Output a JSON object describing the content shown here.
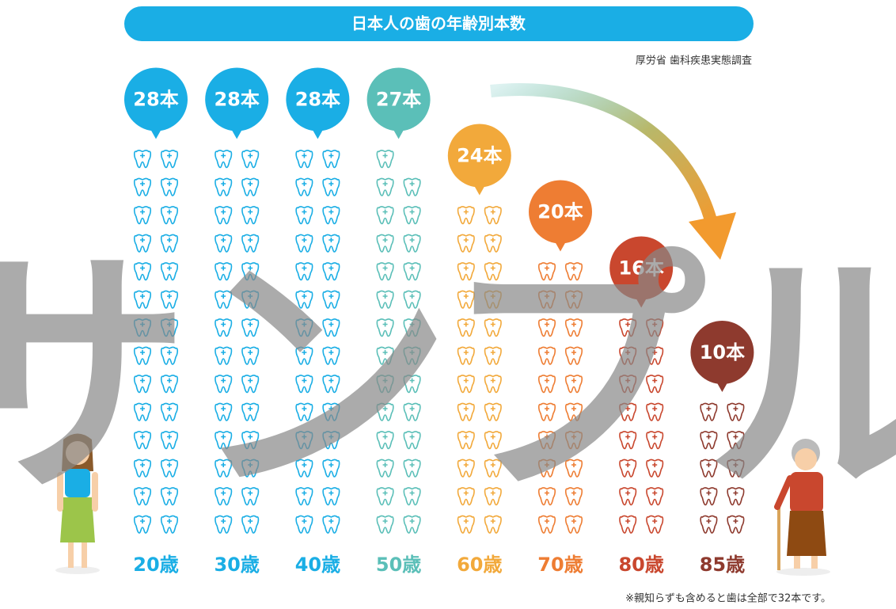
{
  "chart_data": {
    "type": "pictogram",
    "title": "日本人の歯の年齢別本数",
    "source": "厚労省 歯科疾患実態調査",
    "note": "※親知らずも含めると歯は全部で32本です。",
    "watermark": "サンプル",
    "categories": [
      "20歳",
      "30歳",
      "40歳",
      "50歳",
      "60歳",
      "70歳",
      "80歳",
      "85歳"
    ],
    "values": [
      28,
      28,
      28,
      27,
      24,
      20,
      16,
      10
    ],
    "value_labels": [
      "28本",
      "28本",
      "28本",
      "27本",
      "24本",
      "20本",
      "16本",
      "10本"
    ],
    "colors": [
      "#1aaee5",
      "#1aaee5",
      "#1aaee5",
      "#5bbfb8",
      "#f2a93b",
      "#ee7d33",
      "#c9472e",
      "#8e3a2e"
    ]
  }
}
